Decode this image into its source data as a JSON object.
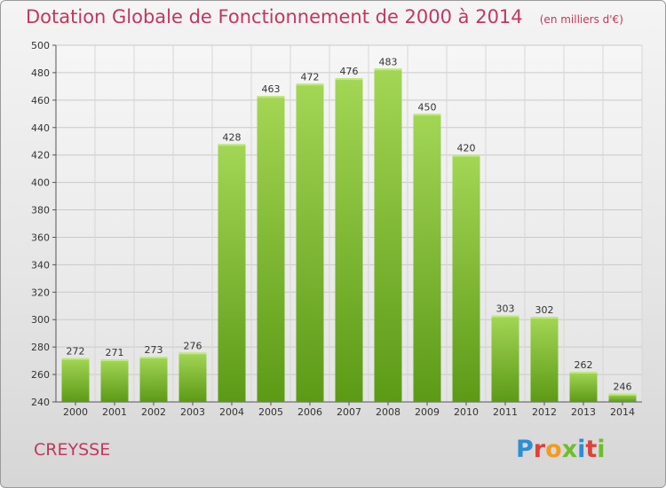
{
  "title": "Dotation Globale de Fonctionnement de 2000 à 2014",
  "unit": "(en milliers d'€)",
  "commune": "CREYSSE",
  "logo": "Proxiti",
  "colors": {
    "title": "#c0385f",
    "bar_light": "#9ed24f",
    "bar_dark": "#5e9b18"
  },
  "chart_data": {
    "type": "bar",
    "categories": [
      "2000",
      "2001",
      "2002",
      "2003",
      "2004",
      "2005",
      "2006",
      "2007",
      "2008",
      "2009",
      "2010",
      "2011",
      "2012",
      "2013",
      "2014"
    ],
    "values": [
      272,
      271,
      273,
      276,
      428,
      463,
      472,
      476,
      483,
      450,
      420,
      303,
      302,
      262,
      246
    ],
    "ylim": [
      240,
      500
    ],
    "yticks": [
      240,
      260,
      280,
      300,
      320,
      340,
      360,
      380,
      400,
      420,
      440,
      460,
      480,
      500
    ],
    "grid": true,
    "xlabel": "",
    "ylabel": ""
  }
}
